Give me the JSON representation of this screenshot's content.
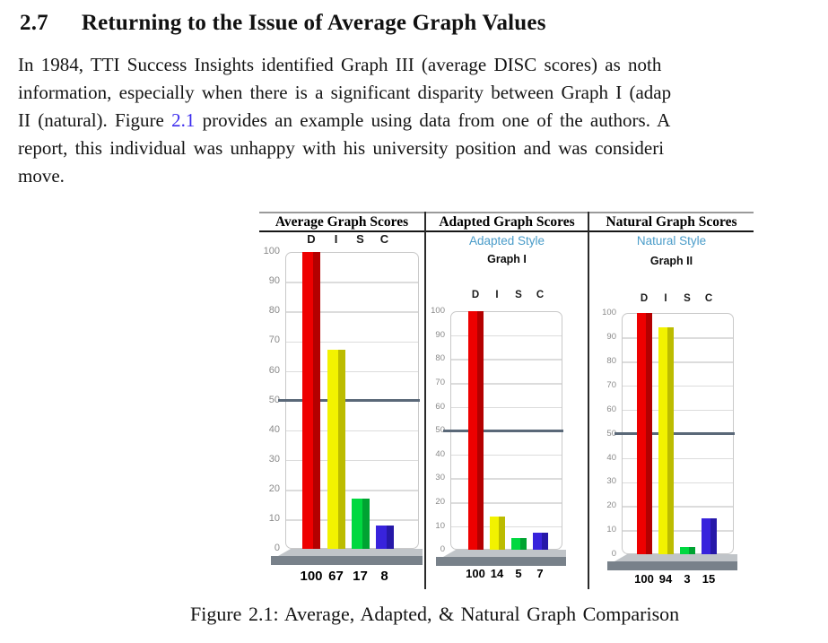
{
  "section": {
    "number": "2.7",
    "title": "Returning to the Issue of Average Graph Values"
  },
  "paragraph": {
    "line1": "In 1984, TTI Success Insights identified Graph III (average DISC scores) as noth",
    "line2": "information, especially when there is a significant disparity between Graph I (adap",
    "line3_pre": "II (natural). Figure ",
    "line3_link": "2.1",
    "line3_post": " provides an example using data from one of the authors. A",
    "line4": "report, this individual was unhappy with his university position and was consideri",
    "line5": "move."
  },
  "figure": {
    "caption": "Figure 2.1: Average, Adapted, & Natural Graph Comparison"
  },
  "chart_data": [
    {
      "type": "bar",
      "title": "Average Graph Scores",
      "categories": [
        "D",
        "I",
        "S",
        "C"
      ],
      "values": [
        100,
        67,
        17,
        8
      ],
      "value_labels": [
        "100",
        "67",
        "17",
        "8"
      ],
      "ylim": [
        0,
        100
      ],
      "ytick_step": 10,
      "reference_line": 50,
      "grid": true,
      "legend": "none"
    },
    {
      "type": "bar",
      "title": "Adapted Graph Scores",
      "style_label": "Adapted Style",
      "graph_label": "Graph I",
      "categories": [
        "D",
        "I",
        "S",
        "C"
      ],
      "values": [
        100,
        14,
        5,
        7
      ],
      "value_labels": [
        "100",
        "14",
        "5",
        "7"
      ],
      "ylim": [
        0,
        100
      ],
      "ytick_step": 10,
      "reference_line": 50,
      "grid": true,
      "legend": "none"
    },
    {
      "type": "bar",
      "title": "Natural Graph Scores",
      "style_label": "Natural Style",
      "graph_label": "Graph II",
      "categories": [
        "D",
        "I",
        "S",
        "C"
      ],
      "values": [
        100,
        94,
        3,
        15
      ],
      "value_labels": [
        "100",
        "94",
        "3",
        "15"
      ],
      "ylim": [
        0,
        100
      ],
      "ytick_step": 10,
      "reference_line": 50,
      "grid": true,
      "legend": "none"
    }
  ],
  "colors": {
    "bar_main": [
      "#ee0000",
      "#f2f200",
      "#00d840",
      "#3823dc"
    ],
    "bar_dark": [
      "#b40000",
      "#bcbc00",
      "#00a332",
      "#2618a8"
    ],
    "reference_line": "#5a6878",
    "style_label": "#4a9cc9",
    "link": "#3b2bee",
    "gridline": "#dcdcdc",
    "plot_border": "#c9c9c9",
    "ytick_text": "#8a8a8a",
    "platform_top": "#c0c4c8",
    "platform_front": "#78818a",
    "column_divider": "#2a2a2a",
    "figure_top_rule": "#9a9a9a"
  }
}
